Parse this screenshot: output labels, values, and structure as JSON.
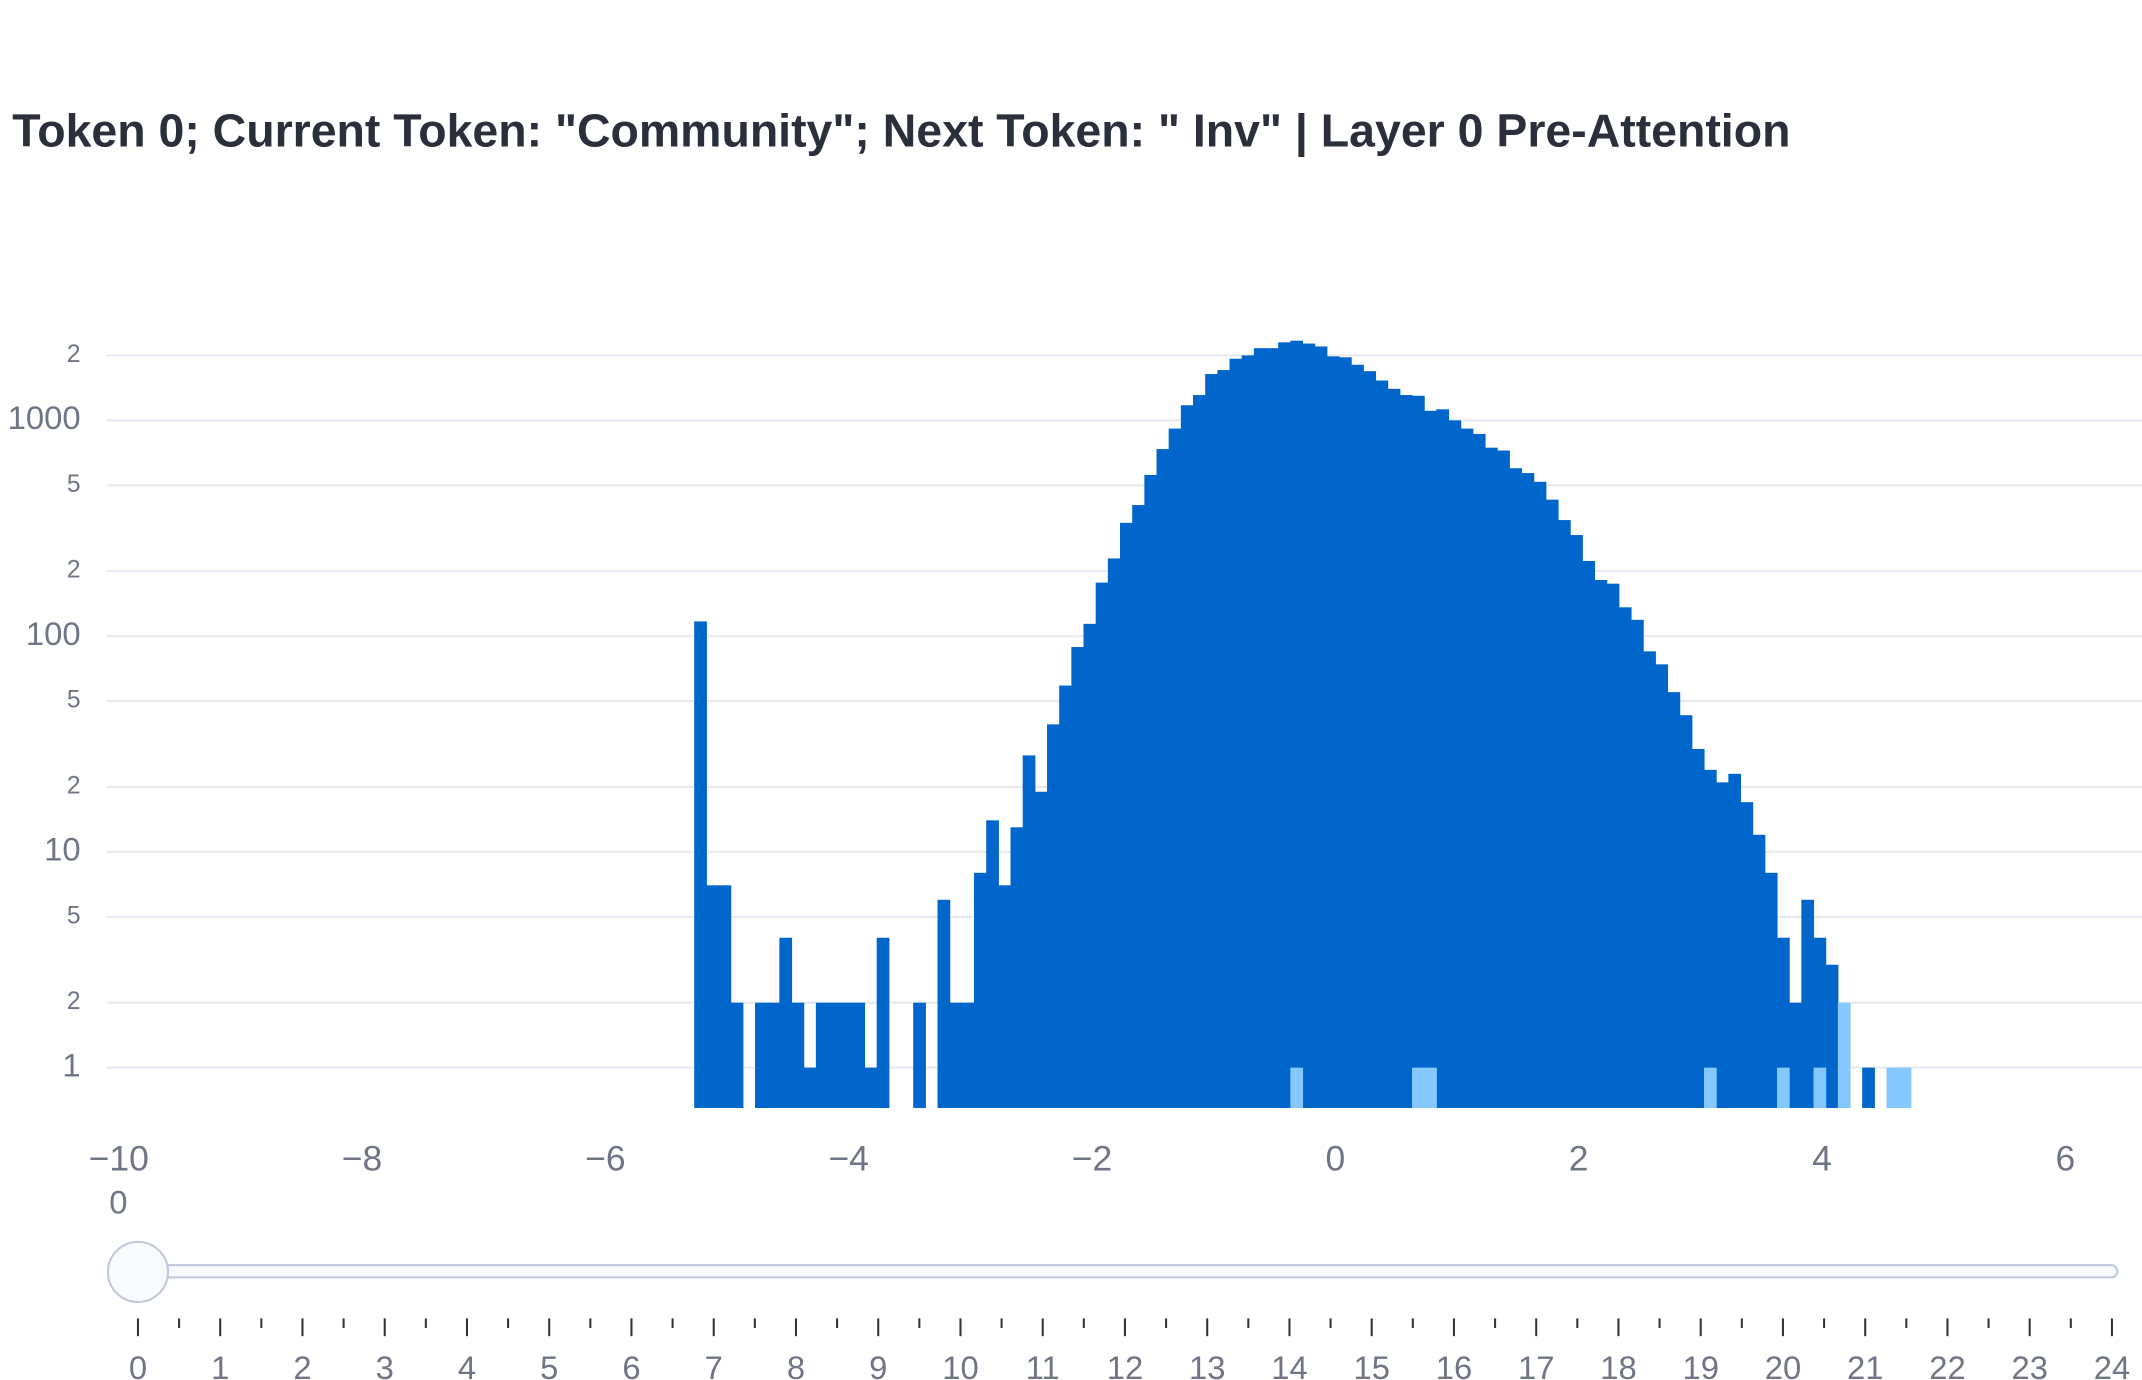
{
  "chart_data": {
    "type": "histogram",
    "title": "Token 0; Current Token: \"Community\"; Next Token: \" Inv\" | Layer 0 Pre-Attention",
    "bins": [
      -5.27,
      -5.17,
      -5.07,
      -4.97,
      -4.87,
      -4.77,
      -4.67,
      -4.57,
      -4.47,
      -4.37,
      -4.27,
      -4.17,
      -4.07,
      -3.97,
      -3.87,
      -3.77,
      -3.67,
      -3.57,
      -3.47,
      -3.37,
      -3.27,
      -3.17,
      -3.07,
      -2.97,
      -2.87,
      -2.77,
      -2.67,
      -2.57,
      -2.47,
      -2.37,
      -2.27,
      -2.17,
      -2.07,
      -1.97,
      -1.87,
      -1.77,
      -1.67,
      -1.57,
      -1.47,
      -1.37,
      -1.27,
      -1.17,
      -1.07,
      -0.97,
      -0.87,
      -0.77,
      -0.67,
      -0.57,
      -0.47,
      -0.37,
      -0.27,
      -0.17,
      -0.07,
      0.03,
      0.13,
      0.23,
      0.33,
      0.43,
      0.53,
      0.63,
      0.73,
      0.83,
      0.93,
      1.03,
      1.13,
      1.23,
      1.33,
      1.43,
      1.53,
      1.63,
      1.73,
      1.83,
      1.93,
      2.03,
      2.13,
      2.23,
      2.33,
      2.43,
      2.53,
      2.63,
      2.73,
      2.83,
      2.93,
      3.03,
      3.13,
      3.23,
      3.33,
      3.43,
      3.53,
      3.63,
      3.73,
      3.83,
      3.93,
      4.03,
      4.13,
      4.23,
      4.33,
      4.43,
      4.53,
      4.63,
      4.73
    ],
    "series": [
      {
        "color": "#0066cc",
        "values": [
          117,
          7,
          7,
          2,
          0,
          2,
          2,
          4,
          2,
          1,
          2,
          2,
          2,
          2,
          1,
          4,
          0,
          0,
          2,
          0,
          6,
          2,
          2,
          8,
          14,
          7,
          13,
          28,
          19,
          39,
          59,
          89,
          114,
          177,
          229,
          335,
          405,
          558,
          736,
          916,
          1175,
          1310,
          1640,
          1710,
          1930,
          2000,
          2160,
          2160,
          2300,
          2340,
          2270,
          2200,
          1980,
          1960,
          1810,
          1690,
          1530,
          1400,
          1310,
          1300,
          1107,
          1125,
          1000,
          916,
          865,
          747,
          725,
          600,
          570,
          519,
          429,
          345,
          294,
          223,
          182,
          175,
          136,
          119,
          85,
          74,
          55,
          43,
          30,
          24,
          21,
          23,
          17,
          12,
          8,
          4,
          2,
          6,
          4,
          3,
          0,
          0,
          1,
          0,
          0,
          0
        ]
      },
      {
        "color": "#85c8ff",
        "values": [
          0,
          0,
          0,
          0,
          0,
          0,
          0,
          0,
          0,
          0,
          0,
          0,
          0,
          0,
          0,
          0,
          0,
          0,
          0,
          0,
          0,
          0,
          0,
          0,
          0,
          0,
          0,
          0,
          0,
          0,
          0,
          0,
          0,
          0,
          0,
          0,
          0,
          0,
          0,
          0,
          0,
          0,
          0,
          0,
          0,
          0,
          0,
          0,
          0,
          1,
          0,
          0,
          0,
          0,
          0,
          0,
          0,
          0,
          0,
          1,
          1,
          0,
          0,
          0,
          0,
          0,
          0,
          0,
          0,
          0,
          0,
          0,
          0,
          0,
          0,
          0,
          0,
          0,
          0,
          0,
          0,
          0,
          0,
          1,
          0,
          0,
          0,
          0,
          0,
          1,
          0,
          0,
          1,
          0,
          2,
          0,
          0,
          0,
          1,
          1
        ]
      }
    ],
    "log_y": true,
    "grid": true,
    "xlim": [
      -10.1,
      6.63
    ],
    "xticks": [
      {
        "value": -10,
        "label": "−10"
      },
      {
        "value": -8,
        "label": "−8"
      },
      {
        "value": -6,
        "label": "−6"
      },
      {
        "value": -4,
        "label": "−4"
      },
      {
        "value": -2,
        "label": "−2"
      },
      0,
      2,
      4,
      6
    ],
    "ylim": [
      0.65,
      3100
    ],
    "yticks": [
      1,
      2,
      5,
      10,
      {
        "value": 20,
        "label": "2"
      },
      {
        "value": 50,
        "label": "5"
      },
      100,
      {
        "value": 200,
        "label": "2"
      },
      {
        "value": 500,
        "label": "5"
      },
      1000,
      {
        "value": 2000,
        "label": "2"
      }
    ],
    "slider": {
      "current": "0",
      "steps": [
        "0",
        "1",
        "2",
        "3",
        "4",
        "5",
        "6",
        "7",
        "8",
        "9",
        "10",
        "11",
        "12",
        "13",
        "14",
        "15",
        "16",
        "17",
        "18",
        "19",
        "20",
        "21",
        "22",
        "23",
        "24"
      ]
    }
  }
}
